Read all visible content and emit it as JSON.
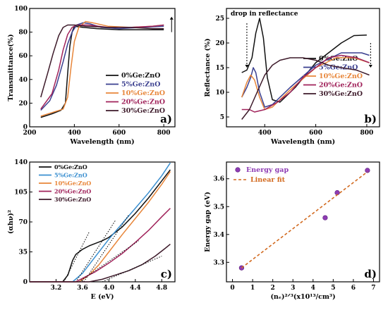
{
  "chart_data": [
    {
      "panel": "a",
      "type": "line",
      "panel_label": "a)",
      "xlabel": "Wavelength (nm)",
      "ylabel": "Transmittance(%)",
      "xlim": [
        200,
        850
      ],
      "ylim": [
        0,
        100
      ],
      "xticks": [
        200,
        400,
        600,
        800
      ],
      "yticks": [
        0,
        20,
        40,
        60,
        80,
        100
      ],
      "legend_position": "bottom-right",
      "annotation_arrow": "up",
      "series": [
        {
          "name": "0%Ge:ZnO",
          "color": "#111111",
          "points": [
            [
              250,
              8
            ],
            [
              300,
              11
            ],
            [
              340,
              14
            ],
            [
              360,
              20
            ],
            [
              370,
              45
            ],
            [
              380,
              68
            ],
            [
              390,
              80
            ],
            [
              400,
              85
            ],
            [
              440,
              84
            ],
            [
              500,
              83
            ],
            [
              600,
              82
            ],
            [
              700,
              82
            ],
            [
              800,
              82
            ]
          ]
        },
        {
          "name": "5%Ge:ZnO",
          "color": "#3a3f8f",
          "points": [
            [
              250,
              14
            ],
            [
              290,
              22
            ],
            [
              320,
              35
            ],
            [
              350,
              55
            ],
            [
              370,
              70
            ],
            [
              390,
              80
            ],
            [
              410,
              86
            ],
            [
              440,
              88
            ],
            [
              470,
              87
            ],
            [
              520,
              84
            ],
            [
              600,
              83
            ],
            [
              700,
              84
            ],
            [
              800,
              85
            ]
          ]
        },
        {
          "name": "10%Ge:ZnO",
          "color": "#e8863a",
          "points": [
            [
              250,
              9
            ],
            [
              300,
              12
            ],
            [
              350,
              15
            ],
            [
              370,
              25
            ],
            [
              385,
              50
            ],
            [
              400,
              72
            ],
            [
              420,
              84
            ],
            [
              450,
              89
            ],
            [
              480,
              88
            ],
            [
              550,
              85
            ],
            [
              650,
              84
            ],
            [
              750,
              85
            ],
            [
              800,
              86
            ]
          ]
        },
        {
          "name": "20%Ge:ZnO",
          "color": "#a0225a",
          "points": [
            [
              250,
              15
            ],
            [
              300,
              28
            ],
            [
              330,
              48
            ],
            [
              350,
              65
            ],
            [
              370,
              78
            ],
            [
              390,
              84
            ],
            [
              410,
              86
            ],
            [
              460,
              86
            ],
            [
              550,
              84
            ],
            [
              650,
              84
            ],
            [
              750,
              85
            ],
            [
              800,
              86
            ]
          ]
        },
        {
          "name": "30%Ge:ZnO",
          "color": "#3d1a2a",
          "points": [
            [
              250,
              25
            ],
            [
              280,
              45
            ],
            [
              305,
              62
            ],
            [
              330,
              77
            ],
            [
              350,
              84
            ],
            [
              370,
              86
            ],
            [
              400,
              86
            ],
            [
              450,
              85
            ],
            [
              550,
              84
            ],
            [
              650,
              84
            ],
            [
              750,
              83
            ],
            [
              800,
              83
            ]
          ]
        }
      ]
    },
    {
      "panel": "b",
      "type": "line",
      "panel_label": "b)",
      "xlabel": "Wavelength (nm)",
      "ylabel": "Reflectance (%)",
      "xlim": [
        250,
        850
      ],
      "ylim": [
        3,
        27
      ],
      "xticks": [
        400,
        600,
        800
      ],
      "yticks": [
        5,
        10,
        15,
        20,
        25
      ],
      "annotation": "drop in reflectance",
      "legend_position": "bottom-right",
      "series": [
        {
          "name": "0%Ge:ZnO",
          "color": "#111111",
          "points": [
            [
              310,
              14
            ],
            [
              330,
              14.5
            ],
            [
              350,
              17
            ],
            [
              365,
              22
            ],
            [
              380,
              25
            ],
            [
              395,
              21
            ],
            [
              410,
              13
            ],
            [
              430,
              8.5
            ],
            [
              460,
              8
            ],
            [
              520,
              11
            ],
            [
              600,
              16
            ],
            [
              700,
              20
            ],
            [
              750,
              21.5
            ],
            [
              800,
              21.6
            ]
          ]
        },
        {
          "name": "5%Ge:ZnO",
          "color": "#3a3f8f",
          "points": [
            [
              310,
              9
            ],
            [
              330,
              11
            ],
            [
              345,
              13
            ],
            [
              355,
              15
            ],
            [
              365,
              14
            ],
            [
              380,
              10
            ],
            [
              400,
              7
            ],
            [
              430,
              7.5
            ],
            [
              500,
              11
            ],
            [
              600,
              15.5
            ],
            [
              700,
              18
            ],
            [
              780,
              18
            ],
            [
              810,
              17.5
            ]
          ]
        },
        {
          "name": "10%Ge:ZnO",
          "color": "#e8863a",
          "points": [
            [
              310,
              9
            ],
            [
              330,
              12
            ],
            [
              345,
              13.5
            ],
            [
              360,
              12.5
            ],
            [
              380,
              9
            ],
            [
              400,
              6.5
            ],
            [
              430,
              7
            ],
            [
              500,
              10.5
            ],
            [
              600,
              15
            ],
            [
              680,
              17
            ],
            [
              750,
              17
            ],
            [
              810,
              16
            ]
          ]
        },
        {
          "name": "20%Ge:ZnO",
          "color": "#a0225a",
          "points": [
            [
              310,
              6.5
            ],
            [
              340,
              6.5
            ],
            [
              360,
              6
            ],
            [
              400,
              6.5
            ],
            [
              450,
              8
            ],
            [
              500,
              10
            ],
            [
              550,
              13
            ],
            [
              600,
              15
            ],
            [
              650,
              17
            ],
            [
              700,
              17.5
            ],
            [
              760,
              17
            ],
            [
              810,
              16
            ]
          ]
        },
        {
          "name": "30%Ge:ZnO",
          "color": "#3d1a2a",
          "points": [
            [
              310,
              4.5
            ],
            [
              340,
              6.5
            ],
            [
              370,
              10
            ],
            [
              400,
              13.5
            ],
            [
              430,
              15.5
            ],
            [
              460,
              16.5
            ],
            [
              500,
              17
            ],
            [
              550,
              17
            ],
            [
              600,
              16.5
            ],
            [
              650,
              15.5
            ],
            [
              700,
              15
            ],
            [
              760,
              14.5
            ],
            [
              810,
              13.5
            ]
          ]
        }
      ]
    },
    {
      "panel": "c",
      "type": "line",
      "panel_label": "c)",
      "xlabel": "E (eV)",
      "ylabel": "(αhν)²",
      "xlim": [
        2.8,
        5.0
      ],
      "ylim": [
        0,
        140
      ],
      "xticks": [
        "3.2",
        "3.6",
        "4.0",
        "4.4",
        "4.8"
      ],
      "yticks": [
        0,
        35,
        70,
        105,
        140
      ],
      "legend_position": "top-left",
      "fit_line_style": "dotted",
      "series": [
        {
          "name": "0%Ge:ZnO",
          "color": "#111111",
          "points": [
            [
              2.8,
              0
            ],
            [
              3.3,
              0
            ],
            [
              3.38,
              8
            ],
            [
              3.45,
              25
            ],
            [
              3.5,
              32
            ],
            [
              3.6,
              38
            ],
            [
              3.7,
              42
            ],
            [
              3.9,
              48
            ],
            [
              4.0,
              52
            ],
            [
              4.2,
              64
            ],
            [
              4.4,
              80
            ],
            [
              4.6,
              98
            ],
            [
              4.8,
              118
            ],
            [
              4.93,
              131
            ]
          ],
          "fit": [
            [
              3.32,
              0
            ],
            [
              3.7,
              58
            ]
          ]
        },
        {
          "name": "5%Ge:ZnO",
          "color": "#3a8fd0",
          "points": [
            [
              2.8,
              0
            ],
            [
              3.45,
              0
            ],
            [
              3.6,
              10
            ],
            [
              3.75,
              25
            ],
            [
              3.9,
              40
            ],
            [
              4.0,
              50
            ],
            [
              4.2,
              68
            ],
            [
              4.4,
              86
            ],
            [
              4.6,
              104
            ],
            [
              4.8,
              124
            ],
            [
              4.93,
              139
            ]
          ],
          "fit": [
            [
              3.5,
              0
            ],
            [
              4.1,
              72
            ]
          ]
        },
        {
          "name": "10%Ge:ZnO",
          "color": "#e8863a",
          "points": [
            [
              2.8,
              0
            ],
            [
              3.55,
              0
            ],
            [
              3.7,
              8
            ],
            [
              3.85,
              20
            ],
            [
              4.0,
              35
            ],
            [
              4.2,
              55
            ],
            [
              4.4,
              74
            ],
            [
              4.6,
              93
            ],
            [
              4.8,
              114
            ],
            [
              4.93,
              129
            ]
          ],
          "fit": [
            [
              3.62,
              0
            ],
            [
              4.3,
              78
            ]
          ]
        },
        {
          "name": "20%Ge:ZnO",
          "color": "#a0225a",
          "points": [
            [
              2.8,
              0
            ],
            [
              3.5,
              0
            ],
            [
              3.6,
              4
            ],
            [
              3.8,
              12
            ],
            [
              4.0,
              22
            ],
            [
              4.2,
              33
            ],
            [
              4.4,
              46
            ],
            [
              4.6,
              60
            ],
            [
              4.8,
              76
            ],
            [
              4.93,
              86
            ]
          ],
          "fit": [
            [
              3.55,
              0
            ],
            [
              4.45,
              48
            ]
          ]
        },
        {
          "name": "30%Ge:ZnO",
          "color": "#3d1a2a",
          "points": [
            [
              2.8,
              0
            ],
            [
              3.7,
              0
            ],
            [
              3.9,
              3
            ],
            [
              4.1,
              8
            ],
            [
              4.3,
              13
            ],
            [
              4.5,
              20
            ],
            [
              4.7,
              30
            ],
            [
              4.85,
              39
            ],
            [
              4.93,
              44
            ]
          ],
          "fit": [
            [
              3.9,
              0
            ],
            [
              4.8,
              30
            ]
          ]
        }
      ]
    },
    {
      "panel": "d",
      "type": "scatter",
      "panel_label": "d)",
      "xlabel": "(nₑ)²ᐟ³(x10¹³/cm³)",
      "ylabel": "Energy gap (eV)",
      "xlim": [
        -0.3,
        7.3
      ],
      "ylim": [
        3.23,
        3.66
      ],
      "xticks": [
        0,
        1,
        2,
        3,
        4,
        5,
        6,
        7
      ],
      "yticks": [
        "3.3",
        "3.4",
        "3.5",
        "3.6"
      ],
      "legend_position": "top-left",
      "series": [
        {
          "name": "Energy gap",
          "color": "#8e3cb4",
          "points": [
            [
              0.45,
              3.28
            ],
            [
              4.6,
              3.46
            ],
            [
              5.2,
              3.55
            ],
            [
              6.7,
              3.63
            ]
          ]
        },
        {
          "name": "Linear fit",
          "color": "#d2691e",
          "line": [
            [
              0.45,
              3.28
            ],
            [
              6.7,
              3.625
            ]
          ]
        }
      ]
    }
  ]
}
